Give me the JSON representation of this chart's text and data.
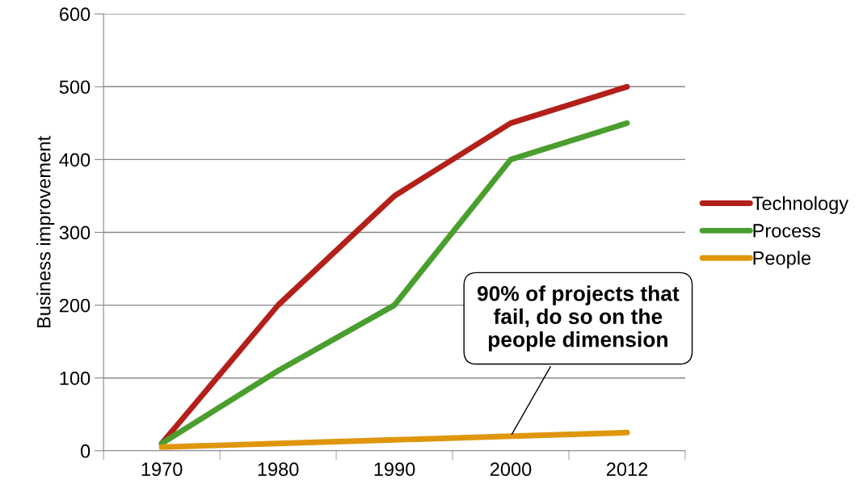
{
  "chart_data": {
    "type": "line",
    "ylabel": "Business improvement",
    "categories": [
      "1970",
      "1980",
      "1990",
      "2000",
      "2012"
    ],
    "series": [
      {
        "name": "Technology",
        "color": "#b3201a",
        "values": [
          10,
          200,
          350,
          450,
          500
        ]
      },
      {
        "name": "Process",
        "color": "#4a9e2e",
        "values": [
          10,
          110,
          200,
          400,
          450
        ]
      },
      {
        "name": "People",
        "color": "#e0960a",
        "values": [
          5,
          10,
          15,
          20,
          25
        ]
      }
    ],
    "ylim": [
      0,
      600
    ],
    "yticks": [
      0,
      100,
      200,
      300,
      400,
      500,
      600
    ],
    "grid": "y",
    "legend": "right",
    "marker": "none",
    "line_style": "solid",
    "annotations": [
      {
        "text": "90% of projects that\nfail, do so on the\npeople dimension",
        "x": "2000",
        "y": 20
      }
    ]
  }
}
